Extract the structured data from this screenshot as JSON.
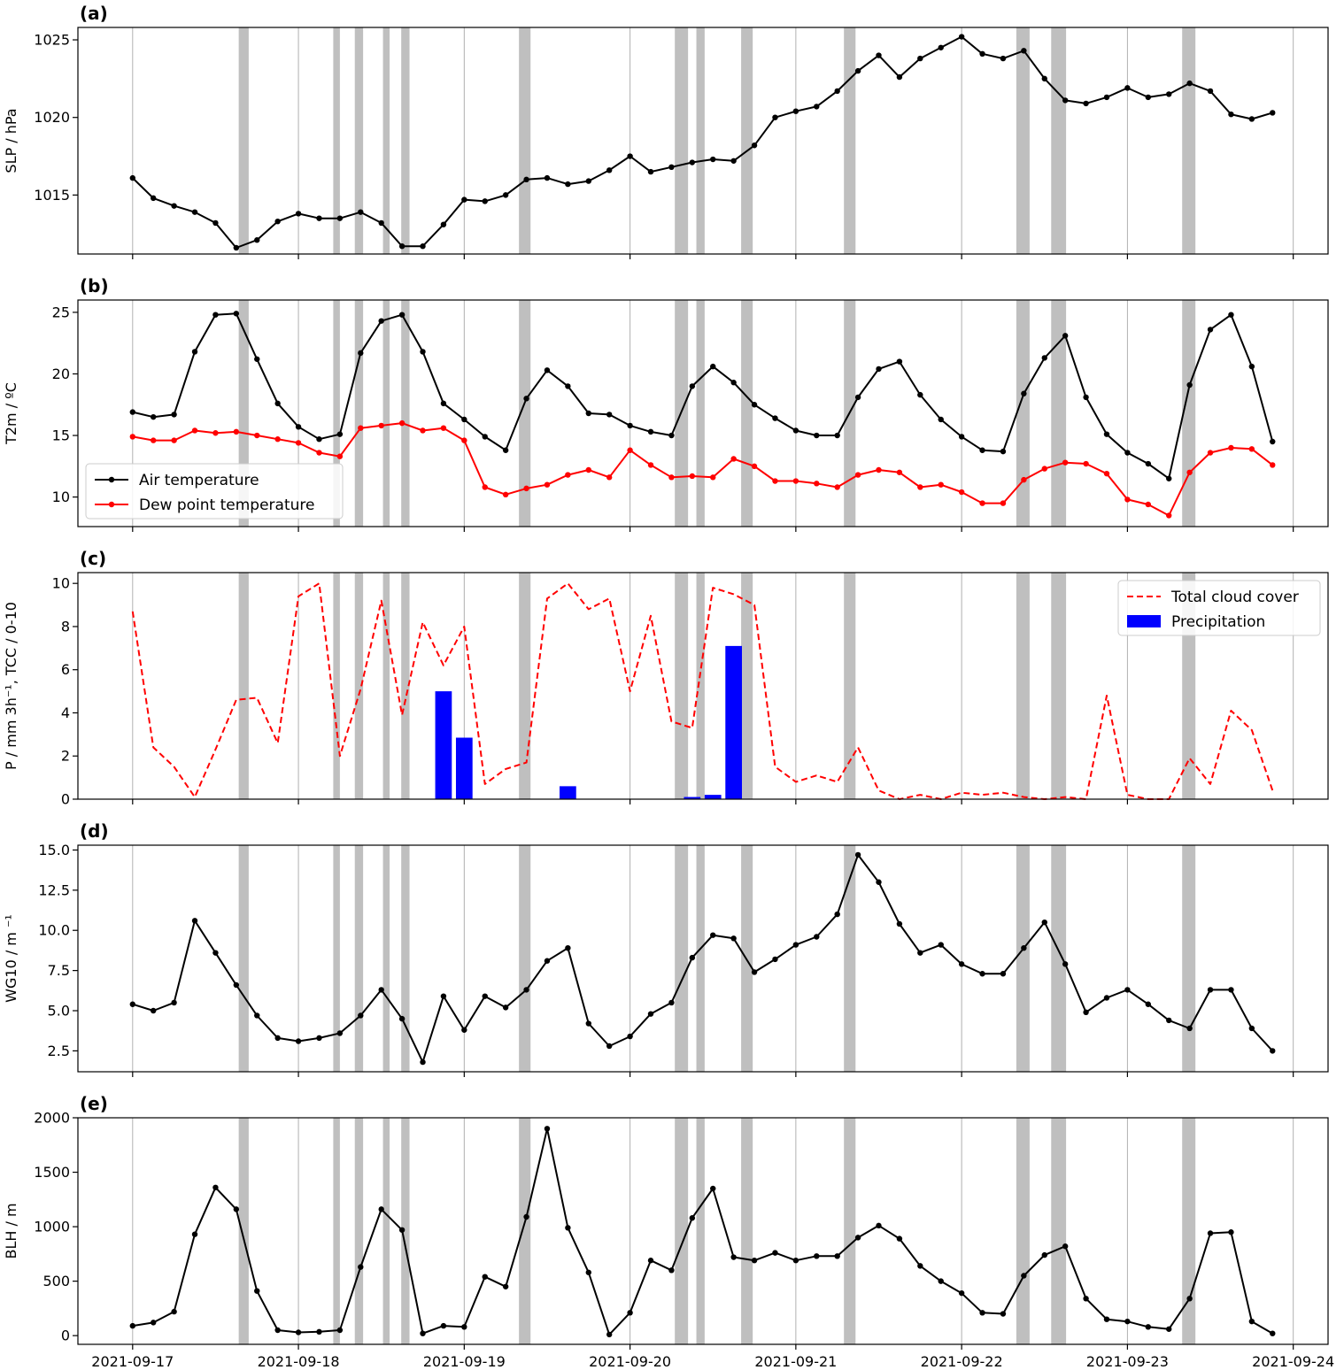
{
  "x_axis": {
    "tick_labels": [
      "2021-09-17",
      "2021-09-18",
      "2021-09-19",
      "2021-09-20",
      "2021-09-21",
      "2021-09-22",
      "2021-09-23",
      "2021-09-24"
    ],
    "range_days": [
      -0.33,
      7.21
    ]
  },
  "shaded_intervals_days": [
    [
      0.64,
      0.7
    ],
    [
      1.21,
      1.25
    ],
    [
      1.34,
      1.39
    ],
    [
      1.51,
      1.55
    ],
    [
      1.62,
      1.67
    ],
    [
      2.33,
      2.4
    ],
    [
      3.27,
      3.35
    ],
    [
      3.4,
      3.45
    ],
    [
      3.67,
      3.74
    ],
    [
      4.29,
      4.36
    ],
    [
      5.33,
      5.41
    ],
    [
      5.54,
      5.63
    ],
    [
      6.33,
      6.41
    ]
  ],
  "chart_data": [
    {
      "type": "line",
      "panel_label": "(a)",
      "ylabel": "SLP / hPa",
      "ylim": [
        1011.2,
        1025.8
      ],
      "yticks": [
        1015,
        1020,
        1025
      ],
      "ytick_labels": [
        "1015",
        "1020",
        "1025"
      ],
      "grid": "x",
      "series": [
        {
          "color": "#000000",
          "style": "solid-markers",
          "x": [
            0,
            0.125,
            0.25,
            0.375,
            0.5,
            0.625,
            0.75,
            0.875,
            1,
            1.125,
            1.25,
            1.375,
            1.5,
            1.625,
            1.75,
            1.875,
            2,
            2.125,
            2.25,
            2.375,
            2.5,
            2.625,
            2.75,
            2.875,
            3,
            3.125,
            3.25,
            3.375,
            3.5,
            3.625,
            3.75,
            3.875,
            4,
            4.125,
            4.25,
            4.375,
            4.5,
            4.625,
            4.75,
            4.875,
            5,
            5.125,
            5.25,
            5.375,
            5.5,
            5.625,
            5.75,
            5.875,
            6,
            6.125,
            6.25,
            6.375,
            6.5,
            6.625,
            6.75,
            6.875
          ],
          "y": [
            1016.1,
            1014.8,
            1014.3,
            1013.9,
            1013.2,
            1011.6,
            1012.1,
            1013.3,
            1013.8,
            1013.5,
            1013.5,
            1013.9,
            1013.2,
            1011.7,
            1011.7,
            1013.1,
            1014.7,
            1014.6,
            1015.0,
            1016.0,
            1016.1,
            1015.7,
            1015.9,
            1016.6,
            1017.5,
            1016.5,
            1016.8,
            1017.1,
            1017.3,
            1017.2,
            1018.2,
            1020.0,
            1020.4,
            1020.7,
            1021.7,
            1023.0,
            1024.0,
            1022.6,
            1023.8,
            1024.5,
            1025.2,
            1024.1,
            1023.8,
            1024.3,
            1022.5,
            1021.1,
            1020.9,
            1021.3,
            1021.9,
            1021.3,
            1021.5,
            1022.2,
            1021.7,
            1020.2,
            1019.9,
            1020.3
          ]
        }
      ]
    },
    {
      "type": "line",
      "panel_label": "(b)",
      "ylabel": "T2m / ºC",
      "ylim": [
        7.6,
        26.0
      ],
      "yticks": [
        10,
        15,
        20,
        25
      ],
      "ytick_labels": [
        "10",
        "15",
        "20",
        "25"
      ],
      "grid": "x",
      "legend": "lower-left",
      "series": [
        {
          "name": "Air temperature",
          "color": "#000000",
          "style": "solid-markers",
          "x": [
            0,
            0.125,
            0.25,
            0.375,
            0.5,
            0.625,
            0.75,
            0.875,
            1,
            1.125,
            1.25,
            1.375,
            1.5,
            1.625,
            1.75,
            1.875,
            2,
            2.125,
            2.25,
            2.375,
            2.5,
            2.625,
            2.75,
            2.875,
            3,
            3.125,
            3.25,
            3.375,
            3.5,
            3.625,
            3.75,
            3.875,
            4,
            4.125,
            4.25,
            4.375,
            4.5,
            4.625,
            4.75,
            4.875,
            5,
            5.125,
            5.25,
            5.375,
            5.5,
            5.625,
            5.75,
            5.875,
            6,
            6.125,
            6.25,
            6.375,
            6.5,
            6.625,
            6.75,
            6.875
          ],
          "y": [
            16.9,
            16.5,
            16.7,
            21.8,
            24.8,
            24.9,
            21.2,
            17.6,
            15.7,
            14.7,
            15.1,
            21.7,
            24.3,
            24.8,
            21.8,
            17.6,
            16.3,
            14.9,
            13.8,
            18.0,
            20.3,
            19.0,
            16.8,
            16.7,
            15.8,
            15.3,
            15.0,
            19.0,
            20.6,
            19.3,
            17.5,
            16.4,
            15.4,
            15.0,
            15.0,
            18.1,
            20.4,
            21.0,
            18.3,
            16.3,
            14.9,
            13.8,
            13.7,
            18.4,
            21.3,
            23.1,
            18.1,
            15.1,
            13.6,
            12.7,
            11.5,
            19.1,
            23.6,
            24.8,
            20.6,
            14.5
          ]
        },
        {
          "name": "Dew point temperature",
          "color": "#ff0000",
          "style": "solid-markers",
          "x": [
            0,
            0.125,
            0.25,
            0.375,
            0.5,
            0.625,
            0.75,
            0.875,
            1,
            1.125,
            1.25,
            1.375,
            1.5,
            1.625,
            1.75,
            1.875,
            2,
            2.125,
            2.25,
            2.375,
            2.5,
            2.625,
            2.75,
            2.875,
            3,
            3.125,
            3.25,
            3.375,
            3.5,
            3.625,
            3.75,
            3.875,
            4,
            4.125,
            4.25,
            4.375,
            4.5,
            4.625,
            4.75,
            4.875,
            5,
            5.125,
            5.25,
            5.375,
            5.5,
            5.625,
            5.75,
            5.875,
            6,
            6.125,
            6.25,
            6.375,
            6.5,
            6.625,
            6.75,
            6.875
          ],
          "y": [
            14.9,
            14.6,
            14.6,
            15.4,
            15.2,
            15.3,
            15.0,
            14.7,
            14.4,
            13.6,
            13.3,
            15.6,
            15.8,
            16.0,
            15.4,
            15.6,
            14.6,
            10.8,
            10.2,
            10.7,
            11.0,
            11.8,
            12.2,
            11.6,
            13.8,
            12.6,
            11.6,
            11.7,
            11.6,
            13.1,
            12.5,
            11.3,
            11.3,
            11.1,
            10.8,
            11.8,
            12.2,
            12.0,
            10.8,
            11.0,
            10.4,
            9.5,
            9.5,
            11.4,
            12.3,
            12.8,
            12.7,
            11.9,
            9.8,
            9.4,
            8.5,
            12.0,
            13.6,
            14.0,
            13.9,
            12.6
          ]
        }
      ]
    },
    {
      "type": "bar+line",
      "panel_label": "(c)",
      "ylabel": "P / mm 3h⁻¹, TCC / 0-10",
      "ylim": [
        0,
        10.5
      ],
      "yticks": [
        0,
        2,
        4,
        6,
        8,
        10
      ],
      "ytick_labels": [
        "0",
        "2",
        "4",
        "6",
        "8",
        "10"
      ],
      "grid": "x",
      "legend": "top-right",
      "series": [
        {
          "name": "Total cloud cover",
          "color": "#ff0000",
          "style": "dashed",
          "x": [
            0,
            0.125,
            0.25,
            0.375,
            0.5,
            0.625,
            0.75,
            0.875,
            1,
            1.125,
            1.25,
            1.375,
            1.5,
            1.625,
            1.75,
            1.875,
            2,
            2.125,
            2.25,
            2.375,
            2.5,
            2.625,
            2.75,
            2.875,
            3,
            3.125,
            3.25,
            3.375,
            3.5,
            3.625,
            3.75,
            3.875,
            4,
            4.125,
            4.25,
            4.375,
            4.5,
            4.625,
            4.75,
            4.875,
            5,
            5.125,
            5.25,
            5.375,
            5.5,
            5.625,
            5.75,
            5.875,
            6,
            6.125,
            6.25,
            6.375,
            6.5,
            6.625,
            6.75,
            6.875
          ],
          "y": [
            8.7,
            2.4,
            1.5,
            0.1,
            2.3,
            4.6,
            4.7,
            2.6,
            9.4,
            10.0,
            2.0,
            5.1,
            9.2,
            3.9,
            8.2,
            6.2,
            8.0,
            0.7,
            1.4,
            1.7,
            9.3,
            10.0,
            8.8,
            9.3,
            5.0,
            8.5,
            3.6,
            3.3,
            9.8,
            9.5,
            9.0,
            1.5,
            0.8,
            1.1,
            0.8,
            2.4,
            0.4,
            0.0,
            0.2,
            0.0,
            0.3,
            0.2,
            0.3,
            0.1,
            0.0,
            0.1,
            0.0,
            4.8,
            0.2,
            0.0,
            0.0,
            1.9,
            0.7,
            4.1,
            3.2,
            0.4
          ]
        },
        {
          "name": "Precipitation",
          "color": "#0000ff",
          "style": "bar",
          "x": [
            1.75,
            1.875,
            2.0,
            2.625,
            3.375,
            3.5,
            3.625
          ],
          "y": [
            0.02,
            5.0,
            2.85,
            0.6,
            0.1,
            0.2,
            7.1
          ]
        }
      ]
    },
    {
      "type": "line",
      "panel_label": "(d)",
      "ylabel": "WG10 / m ⁻¹",
      "ylim": [
        1.2,
        15.3
      ],
      "yticks": [
        2.5,
        5.0,
        7.5,
        10.0,
        12.5,
        15.0
      ],
      "ytick_labels": [
        "2.5",
        "5.0",
        "7.5",
        "10.0",
        "12.5",
        "15.0"
      ],
      "grid": "x",
      "series": [
        {
          "color": "#000000",
          "style": "solid-markers",
          "x": [
            0,
            0.125,
            0.25,
            0.375,
            0.5,
            0.625,
            0.75,
            0.875,
            1,
            1.125,
            1.25,
            1.375,
            1.5,
            1.625,
            1.75,
            1.875,
            2,
            2.125,
            2.25,
            2.375,
            2.5,
            2.625,
            2.75,
            2.875,
            3,
            3.125,
            3.25,
            3.375,
            3.5,
            3.625,
            3.75,
            3.875,
            4,
            4.125,
            4.25,
            4.375,
            4.5,
            4.625,
            4.75,
            4.875,
            5,
            5.125,
            5.25,
            5.375,
            5.5,
            5.625,
            5.75,
            5.875,
            6,
            6.125,
            6.25,
            6.375,
            6.5,
            6.625,
            6.75,
            6.875
          ],
          "y": [
            5.4,
            5.0,
            5.5,
            10.6,
            8.6,
            6.6,
            4.7,
            3.3,
            3.1,
            3.3,
            3.6,
            4.7,
            6.3,
            4.5,
            1.8,
            5.9,
            3.8,
            5.9,
            5.2,
            6.3,
            8.1,
            8.9,
            4.2,
            2.8,
            3.4,
            4.8,
            5.5,
            8.3,
            9.7,
            9.5,
            7.4,
            8.2,
            9.1,
            9.6,
            11.0,
            14.7,
            13.0,
            10.4,
            8.6,
            9.1,
            7.9,
            7.3,
            7.3,
            8.9,
            10.5,
            7.9,
            4.9,
            5.8,
            6.3,
            5.4,
            4.4,
            3.9,
            6.3,
            6.3,
            3.9,
            2.5
          ]
        }
      ]
    },
    {
      "type": "line",
      "panel_label": "(e)",
      "ylabel": "BLH / m",
      "ylim": [
        -80,
        2000
      ],
      "yticks": [
        0,
        500,
        1000,
        1500,
        2000
      ],
      "ytick_labels": [
        "0",
        "500",
        "1000",
        "1500",
        "2000"
      ],
      "grid": "x",
      "series": [
        {
          "color": "#000000",
          "style": "solid-markers",
          "x": [
            0,
            0.125,
            0.25,
            0.375,
            0.5,
            0.625,
            0.75,
            0.875,
            1,
            1.125,
            1.25,
            1.375,
            1.5,
            1.625,
            1.75,
            1.875,
            2,
            2.125,
            2.25,
            2.375,
            2.5,
            2.625,
            2.75,
            2.875,
            3,
            3.125,
            3.25,
            3.375,
            3.5,
            3.625,
            3.75,
            3.875,
            4,
            4.125,
            4.25,
            4.375,
            4.5,
            4.625,
            4.75,
            4.875,
            5,
            5.125,
            5.25,
            5.375,
            5.5,
            5.625,
            5.75,
            5.875,
            6,
            6.125,
            6.25,
            6.375,
            6.5,
            6.625,
            6.75,
            6.875
          ],
          "y": [
            90,
            120,
            220,
            930,
            1360,
            1160,
            410,
            50,
            30,
            35,
            50,
            630,
            1160,
            970,
            20,
            90,
            80,
            540,
            450,
            1090,
            1900,
            990,
            580,
            10,
            210,
            690,
            600,
            1080,
            1350,
            720,
            690,
            760,
            690,
            730,
            730,
            900,
            1010,
            890,
            640,
            500,
            390,
            210,
            200,
            550,
            740,
            820,
            340,
            150,
            130,
            80,
            60,
            340,
            940,
            950,
            130,
            20
          ]
        }
      ]
    }
  ]
}
